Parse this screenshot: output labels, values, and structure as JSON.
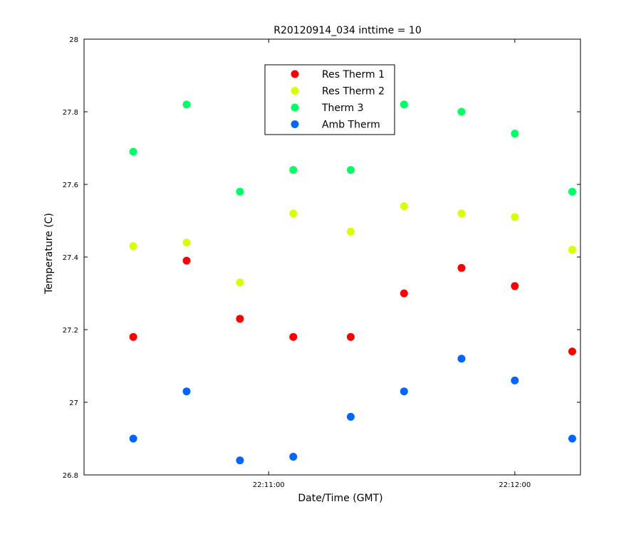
{
  "chart_data": {
    "type": "scatter",
    "title": "R20120914_034 inttime = 10",
    "xlabel": "Date/Time (GMT)",
    "ylabel": "Temperature (C)",
    "xlim": [
      "22:10:15",
      "22:12:16"
    ],
    "ylim": [
      26.8,
      28.0
    ],
    "yticks": [
      "26.8",
      "27",
      "27.2",
      "27.4",
      "27.6",
      "27.8",
      "28"
    ],
    "xticks": [
      {
        "t": "22:11:00",
        "label": "22:11:00"
      },
      {
        "t": "22:12:00",
        "label": "22:12:00"
      }
    ],
    "x": [
      "22:10:27",
      "22:10:40",
      "22:10:53",
      "22:11:06",
      "22:11:20",
      "22:11:33",
      "22:11:47",
      "22:12:00",
      "22:12:14"
    ],
    "series": [
      {
        "name": "Res Therm 1",
        "color": "#ff0000",
        "values": [
          27.18,
          27.39,
          27.23,
          27.18,
          27.18,
          27.3,
          27.37,
          27.32,
          27.14
        ]
      },
      {
        "name": "Res Therm 2",
        "color": "#d9ff00",
        "values": [
          27.43,
          27.44,
          27.33,
          27.52,
          27.47,
          27.54,
          27.52,
          27.51,
          27.42
        ]
      },
      {
        "name": "Therm 3",
        "color": "#00ff66",
        "values": [
          27.69,
          27.82,
          27.58,
          27.64,
          27.64,
          27.82,
          27.8,
          27.74,
          27.58
        ]
      },
      {
        "name": "Amb Therm",
        "color": "#0066ff",
        "values": [
          26.9,
          27.03,
          26.84,
          26.85,
          26.96,
          27.03,
          27.12,
          27.06,
          26.9
        ]
      }
    ],
    "legend_position": "top-center",
    "grid": false
  }
}
